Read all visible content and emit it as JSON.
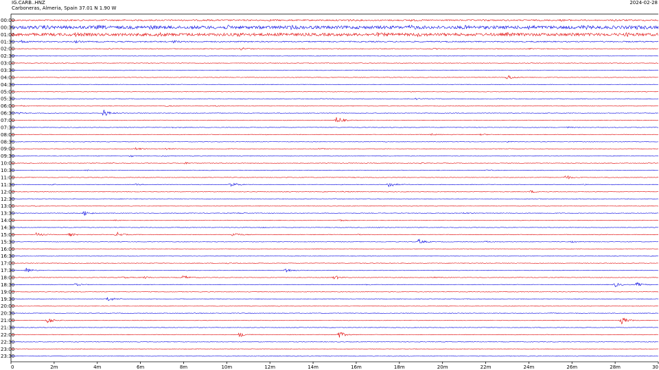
{
  "header": {
    "station": "IG.CARB..HNZ",
    "location": "Carboneras, Almeria, Spain  37.01 N 1.90 W",
    "date": "2024-02-28"
  },
  "chart_data": {
    "type": "line",
    "title": "",
    "xlabel": "",
    "ylabel": "",
    "x_unit": "minutes",
    "xlim": [
      0,
      30
    ],
    "x_ticks": [
      "0",
      "2m",
      "4m",
      "6m",
      "8m",
      "10m",
      "12m",
      "14m",
      "16m",
      "18m",
      "20m",
      "22m",
      "24m",
      "26m",
      "28m",
      "30"
    ],
    "row_colors": [
      "#e00000",
      "#0000e0"
    ],
    "grid": false,
    "rows": [
      {
        "label": "00:00",
        "noise": 0.9,
        "events": [
          [
            2.5,
            0.6
          ],
          [
            5,
            0.5
          ],
          [
            9,
            0.5
          ],
          [
            12,
            0.6
          ],
          [
            15.5,
            1.6
          ],
          [
            18.5,
            0.9
          ],
          [
            22,
            0.8
          ],
          [
            25.5,
            0.7
          ],
          [
            28,
            0.9
          ]
        ]
      },
      {
        "label": "00:30",
        "noise": 2.2,
        "events": [
          [
            1.5,
            1.2
          ],
          [
            4,
            1.3
          ],
          [
            6.5,
            1.2
          ],
          [
            10,
            1.3
          ],
          [
            13,
            1.2
          ],
          [
            18.5,
            1.5
          ],
          [
            21,
            1.2
          ],
          [
            24,
            1.3
          ],
          [
            26.5,
            1.4
          ],
          [
            29,
            1.2
          ]
        ]
      },
      {
        "label": "01:00",
        "noise": 2.0,
        "events": [
          [
            3,
            1.3
          ],
          [
            6.8,
            1.5
          ],
          [
            10.5,
            1.3
          ],
          [
            12.5,
            1.2
          ],
          [
            17,
            1.2
          ],
          [
            18.8,
            1.4
          ],
          [
            23,
            1.3
          ],
          [
            26,
            1.2
          ],
          [
            28.5,
            1.3
          ]
        ]
      },
      {
        "label": "01:30",
        "noise": 0.8,
        "events": [
          [
            0.5,
            1.6
          ],
          [
            3,
            1.2
          ],
          [
            7.5,
            1.5
          ]
        ]
      },
      {
        "label": "02:00",
        "noise": 0.5,
        "events": [
          [
            4.5,
            0.8
          ],
          [
            10.7,
            2.2
          ],
          [
            13.5,
            0.6
          ],
          [
            19.5,
            0.6
          ],
          [
            24,
            0.5
          ]
        ]
      },
      {
        "label": "02:30",
        "noise": 0.4,
        "events": []
      },
      {
        "label": "03:00",
        "noise": 0.4,
        "events": []
      },
      {
        "label": "03:30",
        "noise": 0.4,
        "events": []
      },
      {
        "label": "04:00",
        "noise": 0.4,
        "events": [
          [
            23.0,
            4.0
          ]
        ]
      },
      {
        "label": "04:30",
        "noise": 0.4,
        "events": []
      },
      {
        "label": "05:00",
        "noise": 0.4,
        "events": []
      },
      {
        "label": "05:30",
        "noise": 0.4,
        "events": [
          [
            18.8,
            1.0
          ]
        ]
      },
      {
        "label": "06:00",
        "noise": 0.4,
        "events": [
          [
            0.5,
            0.6
          ],
          [
            7.2,
            0.7
          ],
          [
            9.5,
            0.5
          ]
        ]
      },
      {
        "label": "06:30",
        "noise": 0.4,
        "events": [
          [
            0.3,
            1.4
          ],
          [
            4.3,
            5.5
          ]
        ]
      },
      {
        "label": "07:00",
        "noise": 0.4,
        "events": [
          [
            15.1,
            5.5
          ]
        ]
      },
      {
        "label": "07:30",
        "noise": 0.4,
        "events": [
          [
            7.5,
            0.6
          ],
          [
            25.8,
            1.0
          ]
        ]
      },
      {
        "label": "08:00",
        "noise": 0.4,
        "events": [
          [
            19.5,
            1.2
          ],
          [
            21.8,
            0.8
          ]
        ]
      },
      {
        "label": "08:30",
        "noise": 0.4,
        "events": [
          [
            23,
            0.5
          ]
        ]
      },
      {
        "label": "09:00",
        "noise": 0.4,
        "events": [
          [
            5.8,
            2.0
          ],
          [
            7.2,
            0.8
          ],
          [
            9.8,
            0.6
          ],
          [
            14.3,
            0.8
          ]
        ]
      },
      {
        "label": "09:30",
        "noise": 0.4,
        "events": [
          [
            5.5,
            1.3
          ],
          [
            7.0,
            0.6
          ]
        ]
      },
      {
        "label": "10:00",
        "noise": 0.4,
        "events": [
          [
            4.5,
            0.6
          ],
          [
            8.0,
            1.6
          ],
          [
            19.0,
            0.5
          ]
        ]
      },
      {
        "label": "10:30",
        "noise": 0.4,
        "events": [
          [
            22.0,
            0.7
          ],
          [
            3.5,
            0.5
          ]
        ]
      },
      {
        "label": "11:00",
        "noise": 0.4,
        "events": [
          [
            12.8,
            0.6
          ],
          [
            15.8,
            0.6
          ],
          [
            25.7,
            3.5
          ]
        ]
      },
      {
        "label": "11:30",
        "noise": 0.4,
        "events": [
          [
            1.8,
            0.8
          ],
          [
            5.8,
            0.8
          ],
          [
            10.2,
            4.0
          ],
          [
            17.5,
            4.5
          ],
          [
            26.5,
            0.5
          ]
        ]
      },
      {
        "label": "12:00",
        "noise": 0.4,
        "events": [
          [
            15.4,
            0.8
          ],
          [
            24.1,
            1.6
          ]
        ]
      },
      {
        "label": "12:30",
        "noise": 0.4,
        "events": []
      },
      {
        "label": "13:00",
        "noise": 0.4,
        "events": [
          [
            1.0,
            0.6
          ]
        ]
      },
      {
        "label": "13:30",
        "noise": 0.4,
        "events": [
          [
            3.4,
            3.5
          ],
          [
            10.5,
            0.8
          ],
          [
            21.0,
            0.8
          ]
        ]
      },
      {
        "label": "14:00",
        "noise": 0.4,
        "events": [
          [
            4.8,
            0.6
          ],
          [
            15.2,
            1.5
          ]
        ]
      },
      {
        "label": "14:30",
        "noise": 0.4,
        "events": [
          [
            11.6,
            0.8
          ],
          [
            17.0,
            0.6
          ]
        ]
      },
      {
        "label": "15:00",
        "noise": 0.4,
        "events": [
          [
            1.2,
            2.8
          ],
          [
            2.7,
            2.5
          ],
          [
            4.9,
            3.5
          ],
          [
            10.3,
            3.5
          ],
          [
            16.0,
            0.6
          ]
        ]
      },
      {
        "label": "15:30",
        "noise": 0.4,
        "events": [
          [
            18.9,
            3.5
          ],
          [
            22.0,
            1.0
          ],
          [
            26.0,
            1.0
          ]
        ]
      },
      {
        "label": "16:00",
        "noise": 0.4,
        "events": []
      },
      {
        "label": "16:30",
        "noise": 0.4,
        "events": []
      },
      {
        "label": "17:00",
        "noise": 0.4,
        "events": [
          [
            10.0,
            0.8
          ]
        ]
      },
      {
        "label": "17:30",
        "noise": 0.4,
        "events": [
          [
            0.7,
            3.8
          ],
          [
            12.7,
            3.5
          ]
        ]
      },
      {
        "label": "18:00",
        "noise": 0.4,
        "events": [
          [
            5.2,
            1.2
          ],
          [
            6.2,
            1.5
          ],
          [
            8.0,
            3.0
          ],
          [
            15.0,
            3.0
          ],
          [
            19.5,
            0.8
          ]
        ]
      },
      {
        "label": "18:30",
        "noise": 0.4,
        "events": [
          [
            3.0,
            1.5
          ],
          [
            16.5,
            0.6
          ],
          [
            28.0,
            3.0
          ],
          [
            29.0,
            2.8
          ]
        ]
      },
      {
        "label": "19:00",
        "noise": 0.4,
        "events": []
      },
      {
        "label": "19:30",
        "noise": 0.4,
        "events": [
          [
            4.5,
            3.8
          ]
        ]
      },
      {
        "label": "20:00",
        "noise": 0.4,
        "events": []
      },
      {
        "label": "20:30",
        "noise": 0.4,
        "events": [
          [
            8.5,
            0.6
          ],
          [
            25.0,
            0.6
          ]
        ]
      },
      {
        "label": "21:00",
        "noise": 0.4,
        "events": [
          [
            1.7,
            5.0
          ],
          [
            28.3,
            5.0
          ]
        ]
      },
      {
        "label": "21:30",
        "noise": 0.4,
        "events": []
      },
      {
        "label": "22:00",
        "noise": 0.4,
        "events": [
          [
            10.6,
            3.5
          ],
          [
            15.2,
            5.0
          ]
        ]
      },
      {
        "label": "22:30",
        "noise": 0.4,
        "events": []
      },
      {
        "label": "23:00",
        "noise": 0.4,
        "events": []
      },
      {
        "label": "23:30",
        "noise": 0.4,
        "events": []
      }
    ]
  }
}
